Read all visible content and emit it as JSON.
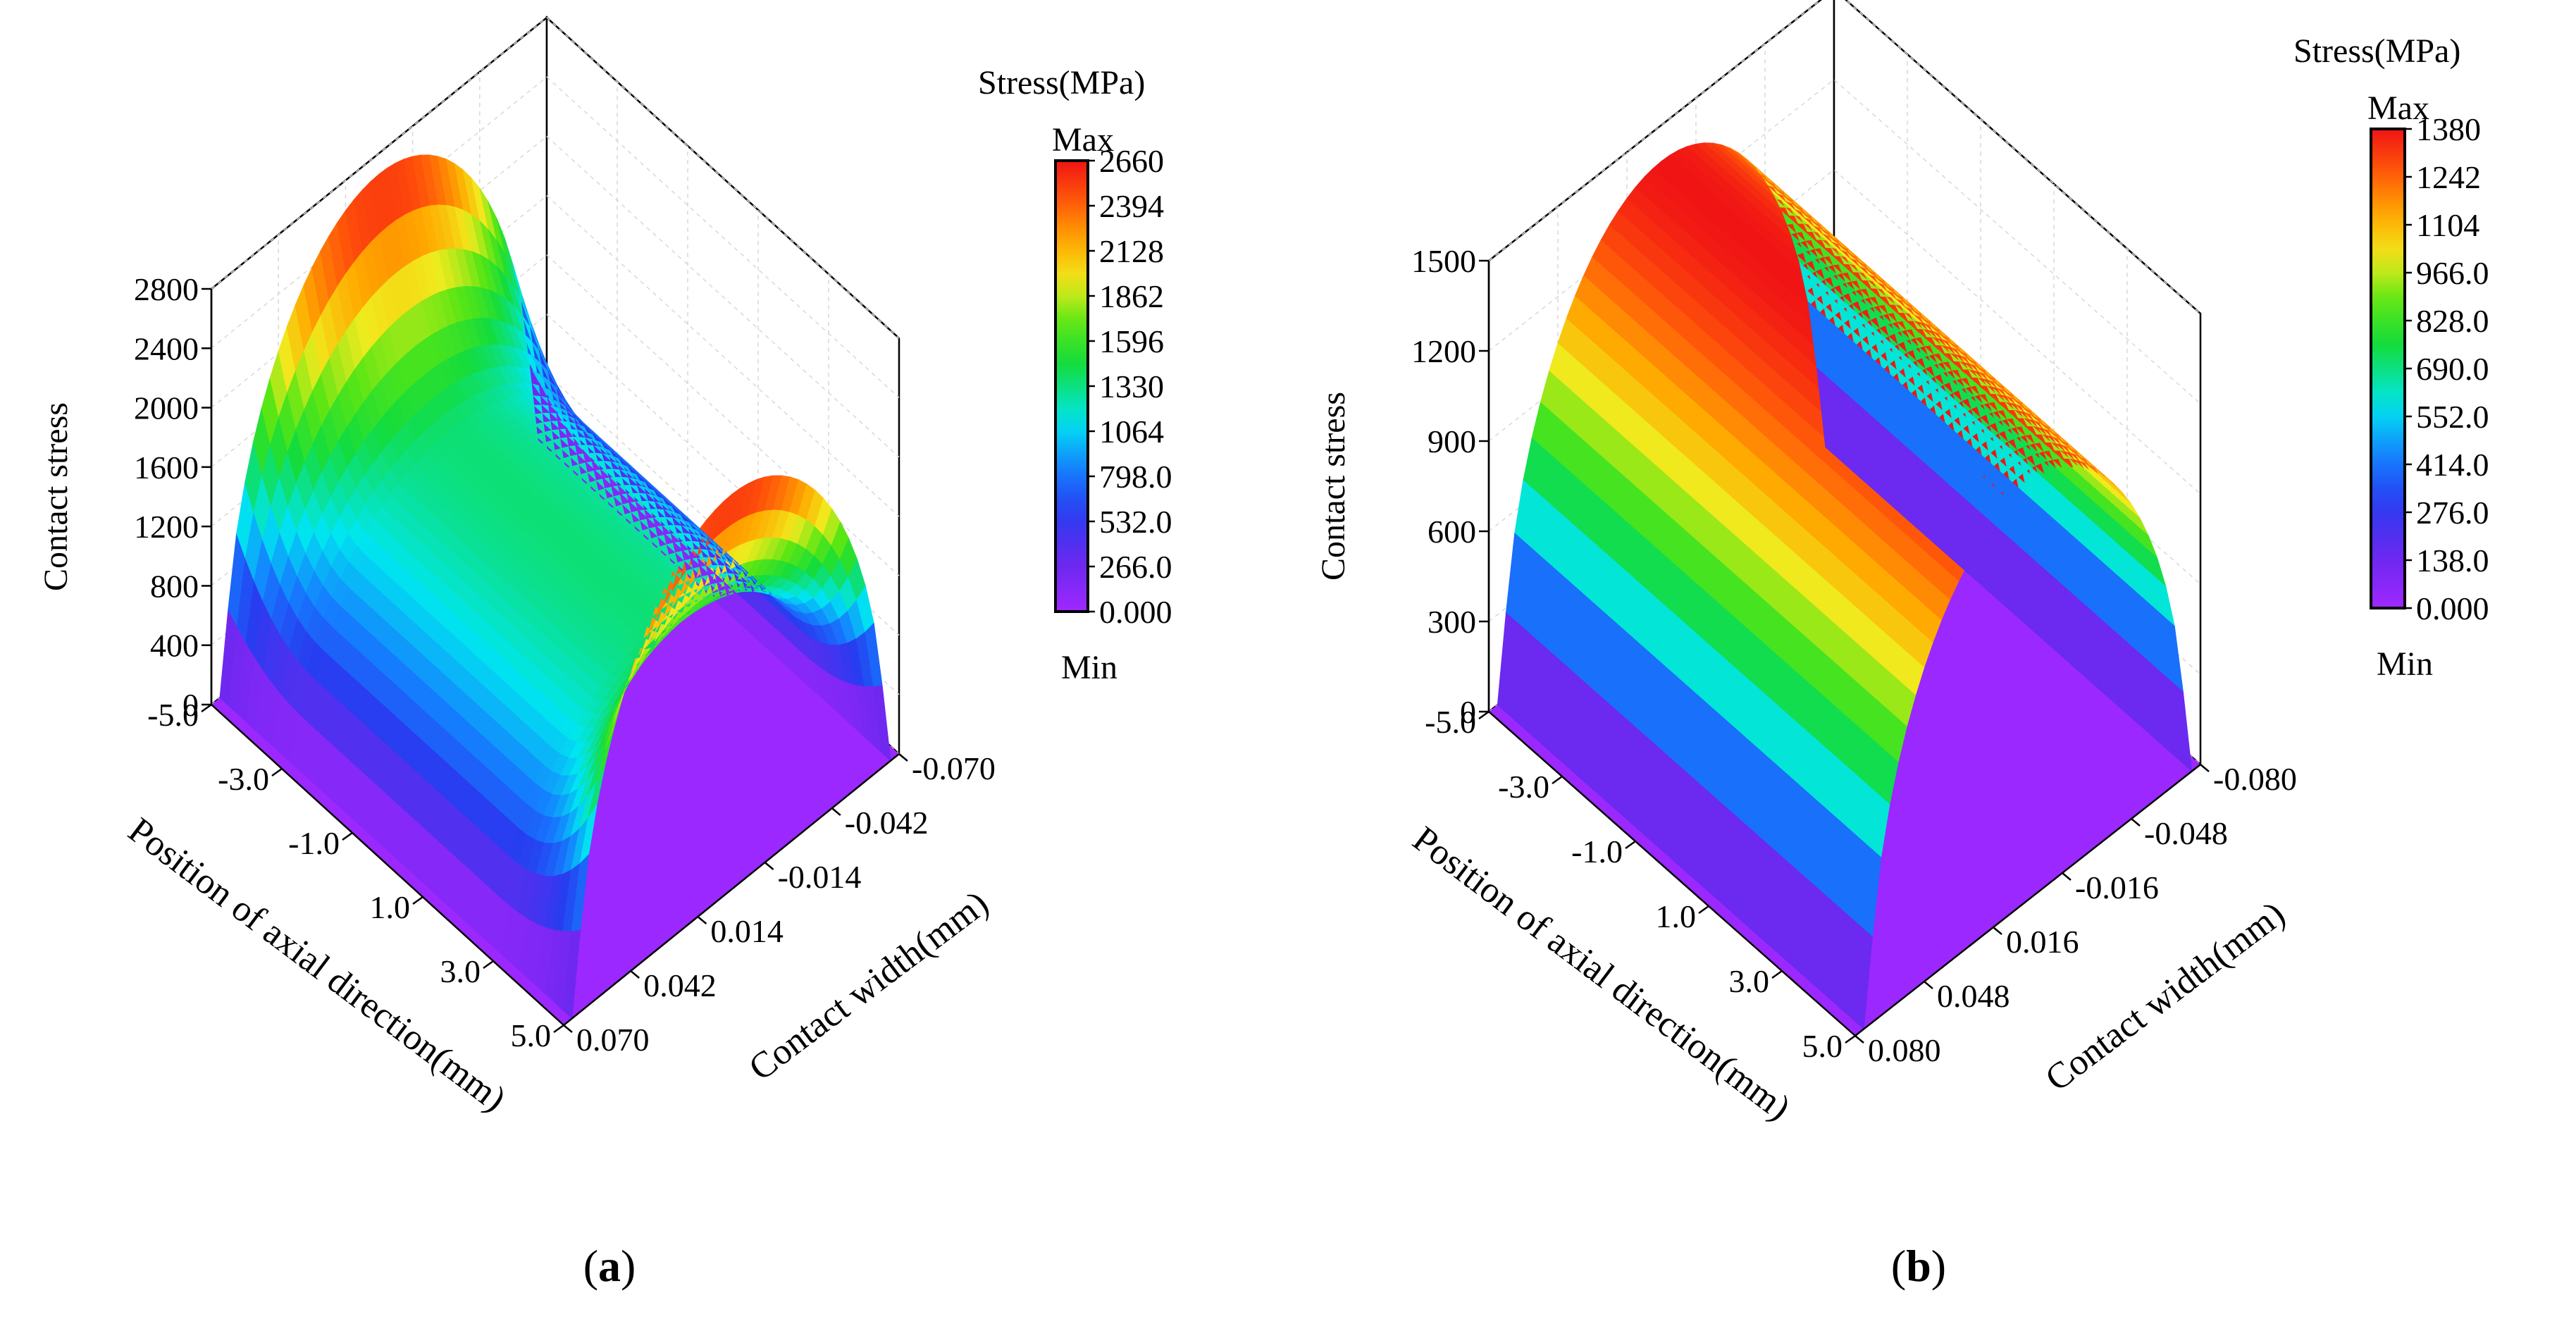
{
  "charts": [
    {
      "panel_label": "a",
      "chart_data": {
        "type": "surface3d",
        "zlabel": "Contact stress",
        "xlabel": "Position of axial direction(mm)",
        "ylabel": "Contact width(mm)",
        "z_ticks": [
          "0",
          "400",
          "800",
          "1200",
          "1600",
          "2000",
          "2400",
          "2800"
        ],
        "z_tick_values": [
          0,
          400,
          800,
          1200,
          1600,
          2000,
          2400,
          2800
        ],
        "x_ticks": [
          "-5.0",
          "-3.0",
          "-1.0",
          "1.0",
          "3.0",
          "5.0"
        ],
        "y_ticks": [
          "0.070",
          "0.042",
          "0.014",
          "-0.014",
          "-0.042",
          "-0.070"
        ],
        "x_range": [
          -5.0,
          5.0
        ],
        "y_range": [
          -0.07,
          0.07
        ],
        "z_range": [
          0,
          2800
        ],
        "colorbar": {
          "title": "Stress(MPa)",
          "max_label": "Max",
          "min_label": "Min",
          "ticks": [
            "2660",
            "2394",
            "2128",
            "1862",
            "1596",
            "1330",
            "1064",
            "798.0",
            "532.0",
            "266.0",
            "0.000"
          ],
          "range": [
            0,
            2660
          ]
        },
        "peak_stress_center": 1350,
        "peak_stress_edge": 2660,
        "description_shape": "edge stress concentration"
      }
    },
    {
      "panel_label": "b",
      "chart_data": {
        "type": "surface3d",
        "zlabel": "Contact stress",
        "xlabel": "Position of axial direction(mm)",
        "ylabel": "Contact width(mm)",
        "z_ticks": [
          "0",
          "300",
          "600",
          "900",
          "1200",
          "1500"
        ],
        "z_tick_values": [
          0,
          300,
          600,
          900,
          1200,
          1500
        ],
        "x_ticks": [
          "-5.0",
          "-3.0",
          "-1.0",
          "1.0",
          "3.0",
          "5.0"
        ],
        "y_ticks": [
          "0.080",
          "0.048",
          "0.016",
          "-0.016",
          "-0.048",
          "-0.080"
        ],
        "x_range": [
          -5.0,
          5.0
        ],
        "y_range": [
          -0.08,
          0.08
        ],
        "z_range": [
          0,
          1500
        ],
        "colorbar": {
          "title": "Stress(MPa)",
          "max_label": "Max",
          "min_label": "Min",
          "ticks": [
            "1380",
            "1242",
            "1104",
            "966.0",
            "828.0",
            "690.0",
            "552.0",
            "414.0",
            "276.0",
            "138.0",
            "0.000"
          ],
          "range": [
            0,
            1380
          ]
        },
        "peak_stress_center": 1380,
        "peak_stress_edge": 1380,
        "description_shape": "uniform distribution"
      }
    }
  ]
}
